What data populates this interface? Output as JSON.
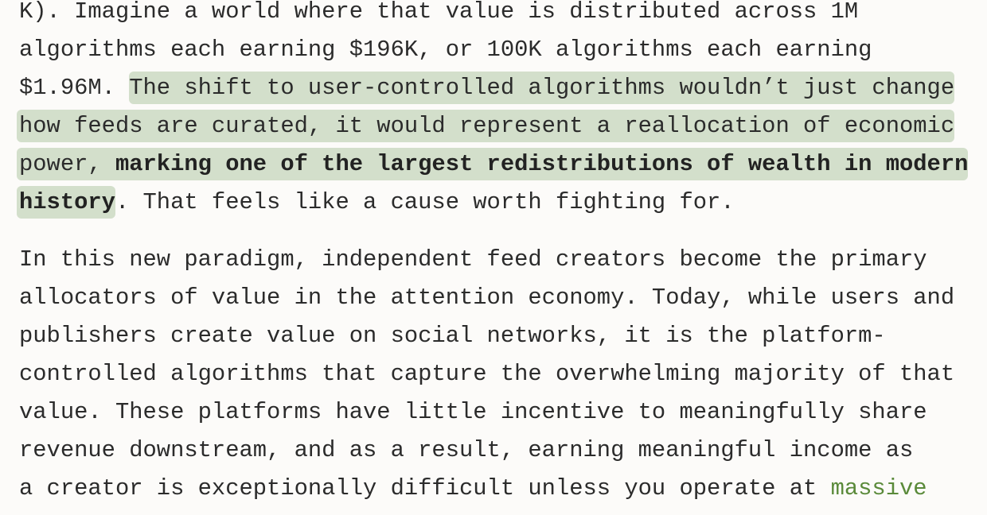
{
  "paragraph1": {
    "line1": "K). Imagine a world where that value is distributed across 1M",
    "line2": "algorithms each earning $196K, or 100K algorithms each earning",
    "line3_plain": "$1.96M. ",
    "line3_highlight": "The shift to user-controlled algorithms wouldn’t just change",
    "line4_highlight": "how feeds are curated, it would represent a reallocation of economic",
    "line5_highlight": "power, ",
    "line5_bold": "marking one of the largest redistributions of wealth in modern",
    "line6_bold": "history",
    "line6_plain": ". That feels like a cause worth fighting for."
  },
  "paragraph2": {
    "lines": [
      "In this new paradigm, independent feed creators become the primary",
      "allocators of value in the attention economy. Today, while users and",
      "publishers create value on social networks, it is the platform-",
      "controlled algorithms that capture the overwhelming majority of that",
      "value. These platforms have little incentive to meaningfully share",
      "revenue downstream, and as a result, earning meaningful income as",
      "a creator is exceptionally difficult unless you operate at "
    ],
    "link_text": "massive"
  },
  "colors": {
    "highlight": "#d3dfcb",
    "link": "#5a8a3a",
    "text": "#2b2b2b",
    "background": "#fcfbf9"
  }
}
